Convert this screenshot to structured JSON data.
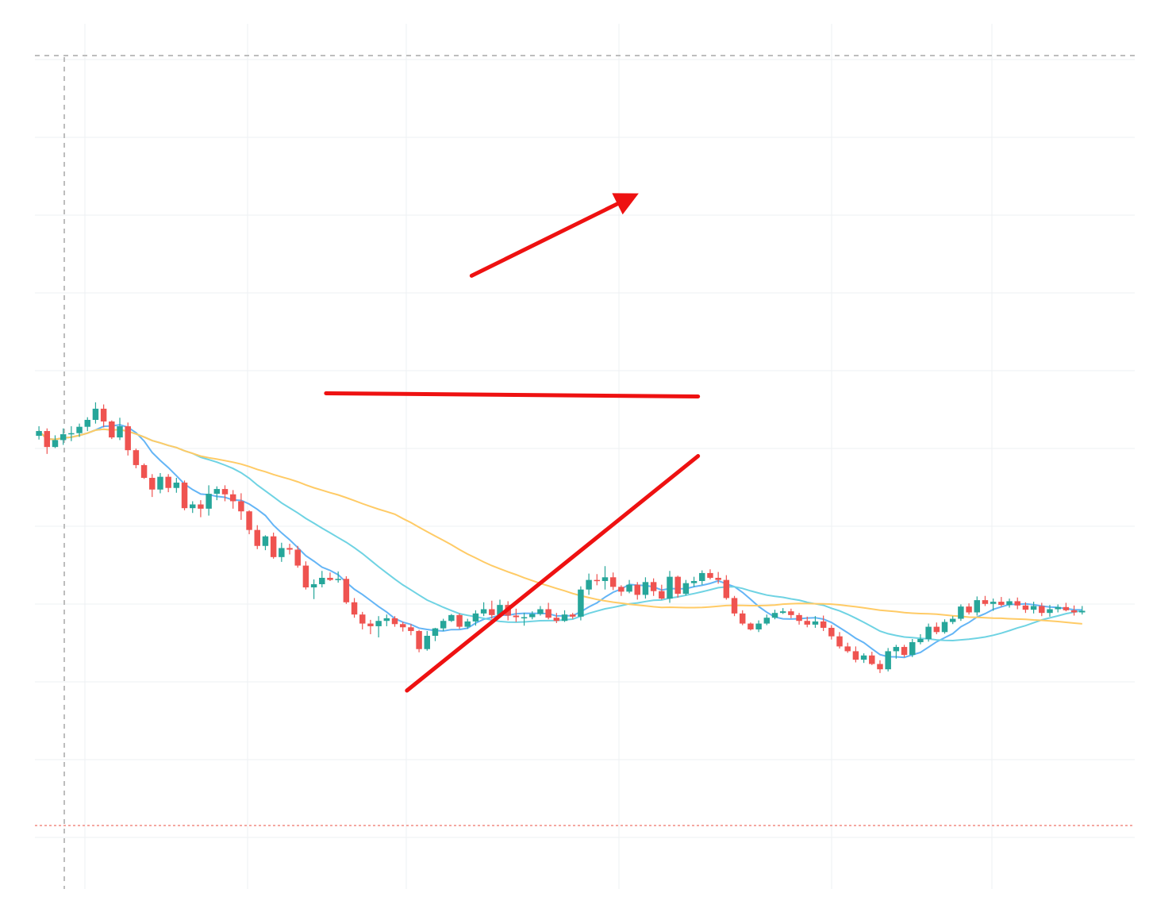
{
  "colors": {
    "bull": "#26a69a",
    "bear": "#ef5350",
    "ma_fast": "#64b5f6",
    "ma_mid": "#6fd3e3",
    "ma_slow": "#ffcb66",
    "annotation": "#ee1111",
    "grid": "#eef0f3",
    "crosshair": "#bdbdbd",
    "level_line": "#f28b82"
  },
  "chart_data": {
    "type": "candlestick",
    "grid": true,
    "legend": "none",
    "x_range": [
      0,
      136
    ],
    "ylim": [
      0,
      100
    ],
    "candles_ohlc": [
      [
        47.9,
        49.7,
        47.2,
        48.8
      ],
      [
        48.8,
        49.3,
        44.5,
        45.8
      ],
      [
        45.8,
        48.0,
        45.6,
        47.1
      ],
      [
        47.1,
        49.3,
        46.2,
        48.2
      ],
      [
        48.2,
        49.7,
        46.9,
        48.4
      ],
      [
        48.4,
        50.2,
        47.7,
        49.6
      ],
      [
        49.6,
        51.4,
        48.8,
        50.9
      ],
      [
        50.9,
        54.2,
        50.2,
        53.0
      ],
      [
        53.0,
        53.8,
        49.5,
        50.6
      ],
      [
        50.6,
        50.8,
        47.3,
        47.6
      ],
      [
        47.6,
        51.3,
        47.1,
        49.7
      ],
      [
        49.7,
        50.4,
        44.2,
        45.2
      ],
      [
        45.2,
        45.5,
        41.8,
        42.4
      ],
      [
        42.4,
        42.7,
        39.8,
        40.0
      ],
      [
        40.0,
        40.7,
        36.4,
        37.8
      ],
      [
        37.8,
        40.9,
        37.1,
        40.2
      ],
      [
        40.2,
        40.7,
        37.3,
        38.1
      ],
      [
        38.1,
        40.0,
        37.2,
        39.1
      ],
      [
        39.1,
        39.5,
        33.9,
        34.3
      ],
      [
        34.3,
        35.6,
        33.4,
        35.0
      ],
      [
        35.0,
        35.8,
        32.6,
        34.2
      ],
      [
        34.2,
        38.6,
        32.9,
        37.0
      ],
      [
        37.0,
        38.4,
        35.8,
        37.9
      ],
      [
        37.9,
        38.6,
        35.6,
        36.9
      ],
      [
        36.9,
        37.7,
        34.2,
        35.6
      ],
      [
        35.6,
        37.1,
        32.1,
        33.7
      ],
      [
        33.7,
        33.9,
        29.4,
        30.2
      ],
      [
        30.2,
        31.1,
        26.6,
        27.2
      ],
      [
        27.2,
        29.2,
        26.4,
        29.0
      ],
      [
        29.0,
        29.7,
        24.8,
        25.1
      ],
      [
        25.1,
        27.8,
        24.2,
        26.8
      ],
      [
        26.8,
        27.6,
        25.6,
        26.5
      ],
      [
        26.5,
        27.2,
        23.1,
        23.5
      ],
      [
        23.5,
        24.3,
        19.0,
        19.4
      ],
      [
        19.4,
        20.9,
        17.2,
        20.0
      ],
      [
        20.0,
        22.5,
        19.4,
        21.2
      ],
      [
        21.2,
        22.2,
        20.6,
        20.8
      ],
      [
        20.8,
        22.4,
        20.3,
        21.0
      ],
      [
        21.0,
        21.5,
        16.3,
        16.6
      ],
      [
        16.6,
        17.4,
        13.7,
        14.3
      ],
      [
        14.3,
        14.8,
        11.5,
        12.6
      ],
      [
        12.6,
        13.3,
        10.6,
        12.1
      ],
      [
        12.1,
        14.0,
        10.0,
        13.1
      ],
      [
        13.1,
        14.3,
        12.1,
        13.6
      ],
      [
        13.6,
        14.0,
        12.0,
        12.5
      ],
      [
        12.5,
        12.9,
        11.1,
        11.9
      ],
      [
        11.9,
        12.5,
        10.4,
        11.2
      ],
      [
        11.2,
        11.4,
        7.2,
        7.8
      ],
      [
        7.8,
        11.2,
        7.5,
        10.3
      ],
      [
        10.3,
        11.8,
        9.3,
        11.7
      ],
      [
        11.7,
        13.5,
        11.2,
        13.1
      ],
      [
        13.1,
        14.4,
        12.9,
        14.2
      ],
      [
        14.2,
        14.5,
        11.6,
        12.0
      ],
      [
        12.0,
        13.5,
        11.6,
        13.0
      ],
      [
        13.0,
        15.1,
        12.2,
        14.5
      ],
      [
        14.5,
        16.6,
        14.0,
        15.3
      ],
      [
        15.3,
        16.9,
        13.5,
        14.2
      ],
      [
        14.2,
        17.1,
        13.7,
        16.1
      ],
      [
        16.1,
        16.8,
        13.2,
        14.1
      ],
      [
        14.1,
        15.4,
        12.9,
        13.8
      ],
      [
        13.8,
        14.6,
        12.2,
        13.8
      ],
      [
        13.8,
        14.9,
        13.4,
        14.4
      ],
      [
        14.4,
        15.9,
        14.1,
        15.3
      ],
      [
        15.3,
        16.5,
        13.4,
        13.7
      ],
      [
        13.7,
        14.6,
        12.7,
        13.1
      ],
      [
        13.1,
        15.1,
        12.9,
        14.3
      ],
      [
        14.3,
        14.6,
        13.5,
        13.9
      ],
      [
        13.9,
        19.6,
        13.2,
        19.0
      ],
      [
        19.0,
        22.0,
        18.0,
        20.8
      ],
      [
        20.8,
        21.9,
        19.8,
        20.6
      ],
      [
        20.6,
        23.4,
        19.0,
        21.3
      ],
      [
        21.3,
        22.2,
        18.9,
        19.5
      ],
      [
        19.5,
        19.8,
        17.8,
        18.6
      ],
      [
        18.6,
        20.8,
        18.3,
        19.9
      ],
      [
        19.9,
        20.4,
        17.1,
        18.0
      ],
      [
        18.0,
        21.3,
        17.3,
        20.4
      ],
      [
        20.4,
        21.1,
        17.8,
        18.7
      ],
      [
        18.7,
        19.9,
        17.1,
        17.3
      ],
      [
        17.3,
        22.5,
        16.5,
        21.4
      ],
      [
        21.4,
        21.6,
        17.5,
        18.2
      ],
      [
        18.2,
        20.8,
        17.9,
        20.2
      ],
      [
        20.2,
        21.4,
        19.5,
        20.6
      ],
      [
        20.6,
        22.6,
        19.9,
        22.1
      ],
      [
        22.1,
        22.8,
        20.9,
        21.2
      ],
      [
        21.2,
        22.3,
        20.1,
        20.8
      ],
      [
        20.8,
        21.7,
        17.1,
        17.4
      ],
      [
        17.4,
        17.8,
        14.0,
        14.5
      ],
      [
        14.5,
        15.1,
        12.3,
        12.6
      ],
      [
        12.6,
        12.8,
        11.3,
        11.5
      ],
      [
        11.5,
        13.2,
        11.0,
        12.6
      ],
      [
        12.6,
        14.3,
        12.3,
        13.7
      ],
      [
        13.7,
        15.2,
        13.4,
        14.6
      ],
      [
        14.6,
        15.5,
        14.4,
        14.9
      ],
      [
        14.9,
        15.4,
        13.6,
        14.2
      ],
      [
        14.2,
        14.6,
        12.4,
        13.1
      ],
      [
        13.1,
        13.9,
        11.9,
        12.4
      ],
      [
        12.4,
        14.0,
        11.8,
        13.0
      ],
      [
        13.0,
        14.1,
        11.2,
        11.8
      ],
      [
        11.8,
        12.3,
        9.6,
        10.2
      ],
      [
        10.2,
        11.0,
        7.9,
        8.3
      ],
      [
        8.3,
        9.0,
        7.1,
        7.4
      ],
      [
        7.4,
        8.3,
        5.3,
        5.8
      ],
      [
        5.8,
        7.0,
        5.2,
        6.6
      ],
      [
        6.6,
        7.3,
        4.8,
        5.0
      ],
      [
        5.0,
        5.7,
        3.3,
        4.0
      ],
      [
        4.0,
        8.0,
        3.6,
        7.4
      ],
      [
        7.4,
        8.6,
        6.0,
        8.2
      ],
      [
        8.2,
        8.6,
        6.3,
        6.7
      ],
      [
        6.7,
        9.7,
        6.3,
        9.1
      ],
      [
        9.1,
        10.6,
        8.7,
        9.7
      ],
      [
        9.7,
        12.6,
        9.2,
        12.0
      ],
      [
        12.0,
        12.8,
        10.6,
        11.0
      ],
      [
        11.0,
        13.4,
        10.7,
        12.9
      ],
      [
        12.9,
        14.0,
        12.5,
        13.5
      ],
      [
        13.5,
        16.2,
        13.1,
        15.8
      ],
      [
        15.8,
        16.4,
        14.3,
        14.7
      ],
      [
        14.7,
        17.7,
        14.1,
        17.0
      ],
      [
        17.0,
        17.8,
        15.9,
        16.3
      ],
      [
        16.3,
        17.3,
        15.0,
        16.7
      ],
      [
        16.7,
        17.6,
        15.8,
        16.1
      ],
      [
        16.1,
        17.3,
        15.6,
        16.8
      ],
      [
        16.8,
        17.5,
        15.3,
        16.0
      ],
      [
        16.0,
        16.6,
        14.6,
        15.2
      ],
      [
        15.2,
        16.7,
        14.5,
        15.9
      ],
      [
        15.9,
        16.5,
        14.0,
        14.6
      ],
      [
        14.6,
        16.1,
        13.9,
        15.3
      ],
      [
        15.3,
        16.2,
        14.7,
        15.7
      ],
      [
        15.7,
        16.5,
        14.9,
        15.1
      ],
      [
        15.1,
        16.0,
        14.1,
        14.7
      ],
      [
        14.7,
        15.9,
        14.3,
        15.0
      ]
    ],
    "overlays": [
      {
        "type": "trendline",
        "from": [
          6,
          0.0
        ],
        "to": [
          42,
          44.1
        ]
      },
      {
        "type": "horizontal",
        "from": [
          -4,
          55.9
        ],
        "to": [
          42,
          55.3
        ]
      },
      {
        "type": "arrow",
        "from": [
          14,
          78.0
        ],
        "to": [
          34,
          93.0
        ]
      }
    ]
  }
}
